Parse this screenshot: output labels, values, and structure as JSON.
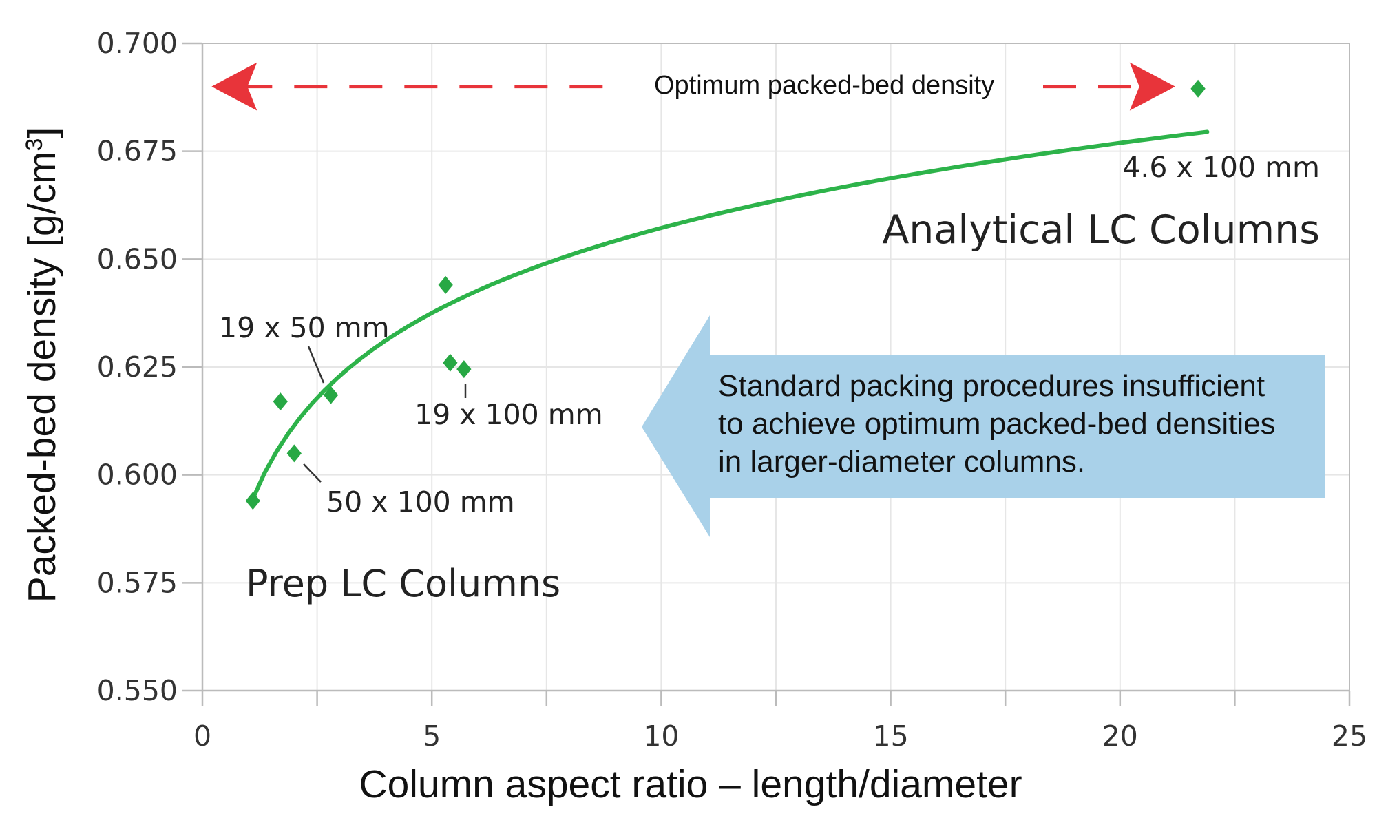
{
  "chart_data": {
    "type": "scatter",
    "title": "",
    "xlabel": "Column aspect ratio – length/diameter",
    "ylabel_main": "Packed-bed density [g/cm",
    "ylabel_sup": "3",
    "ylabel_end": "]",
    "xlim": [
      0,
      25
    ],
    "ylim": [
      0.55,
      0.7
    ],
    "x_ticks": [
      0,
      5,
      10,
      15,
      20,
      25
    ],
    "x_tick_labels": [
      "0",
      "5",
      "10",
      "15",
      "20",
      "25"
    ],
    "y_ticks": [
      0.55,
      0.575,
      0.6,
      0.625,
      0.65,
      0.675,
      0.7
    ],
    "y_tick_labels": [
      "0.550",
      "0.575",
      "0.600",
      "0.625",
      "0.650",
      "0.675",
      "0.700"
    ],
    "grid": true,
    "colors": {
      "points": "#27a844",
      "trend": "#2db34a",
      "optimum_arrow": "#e8343a",
      "callout_fill": "#a9d1e9",
      "grid": "#e6e6e6",
      "axis": "#bbbbbb"
    },
    "series": [
      {
        "name": "",
        "points": [
          {
            "x": 1.1,
            "y": 0.594
          },
          {
            "x": 1.7,
            "y": 0.617
          },
          {
            "x": 2.0,
            "y": 0.605
          },
          {
            "x": 2.8,
            "y": 0.6185
          },
          {
            "x": 5.3,
            "y": 0.644
          },
          {
            "x": 5.4,
            "y": 0.626
          },
          {
            "x": 5.7,
            "y": 0.6245
          },
          {
            "x": 21.7,
            "y": 0.6895
          }
        ]
      }
    ],
    "trend_line": {
      "type": "logarithmic",
      "x_range": [
        1.1,
        21.9
      ],
      "y_start": 0.5945,
      "y_end": 0.6795
    },
    "optimum_line": {
      "y": 0.69,
      "x_range": [
        0.2,
        21.2
      ],
      "label": "Optimum packed-bed density"
    },
    "annotations": {
      "prep_region": "Prep LC Columns",
      "analytical_region": "Analytical LC Columns",
      "label_19x50": "19 x 50 mm",
      "label_50x100": "50 x 100 mm",
      "label_19x100": "19 x 100 mm",
      "label_4_6x100": "4.6 x 100 mm"
    },
    "callout": {
      "lines": [
        "Standard packing procedures insufficient",
        "to achieve optimum packed-bed densities",
        "in larger-diameter columns."
      ]
    }
  }
}
